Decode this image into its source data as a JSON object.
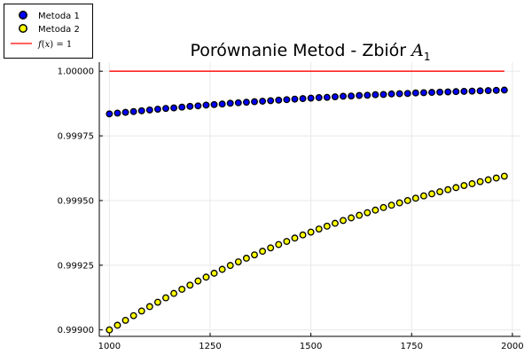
{
  "chart_data": {
    "type": "scatter",
    "title": {
      "text": "Porównanie Metod - Zbiór ",
      "math": "A",
      "sub": "1"
    },
    "xlabel": "",
    "ylabel": "",
    "xlim": [
      975,
      2020
    ],
    "ylim": [
      0.998975,
      1.000035
    ],
    "grid": true,
    "legend_position": "top-left",
    "x_ticks": [
      1000,
      1250,
      1500,
      1750,
      2000
    ],
    "x_tick_labels": [
      "1000",
      "1250",
      "1500",
      "1750",
      "2000"
    ],
    "y_ticks": [
      0.999,
      0.99925,
      0.9995,
      0.99975,
      1.0
    ],
    "y_tick_labels": [
      "0.99900",
      "0.99925",
      "0.99950",
      "0.99975",
      "1.00000"
    ],
    "x": [
      1000,
      1020,
      1040,
      1060,
      1080,
      1100,
      1120,
      1140,
      1160,
      1180,
      1200,
      1220,
      1240,
      1260,
      1280,
      1300,
      1320,
      1340,
      1360,
      1380,
      1400,
      1420,
      1440,
      1460,
      1480,
      1500,
      1520,
      1540,
      1560,
      1580,
      1600,
      1620,
      1640,
      1660,
      1680,
      1700,
      1720,
      1740,
      1760,
      1780,
      1800,
      1820,
      1840,
      1860,
      1880,
      1900,
      1920,
      1940,
      1960,
      1980
    ],
    "series": [
      {
        "name": "Metoda 1",
        "kind": "scatter",
        "color": "#0000ff",
        "values": [
          0.999835,
          0.999838,
          0.999841,
          0.999844,
          0.999847,
          0.99985,
          0.999853,
          0.999856,
          0.999858,
          0.999861,
          0.999864,
          0.999866,
          0.999869,
          0.999871,
          0.999873,
          0.999876,
          0.999878,
          0.99988,
          0.999882,
          0.999884,
          0.999886,
          0.999888,
          0.99989,
          0.999892,
          0.999894,
          0.999896,
          0.999898,
          0.999899,
          0.999901,
          0.999903,
          0.999904,
          0.999906,
          0.999907,
          0.999909,
          0.99991,
          0.999912,
          0.999913,
          0.999914,
          0.999916,
          0.999917,
          0.999918,
          0.999919,
          0.99992,
          0.999921,
          0.999922,
          0.999923,
          0.999924,
          0.999925,
          0.999926,
          0.999927
        ]
      },
      {
        "name": "Metoda 2",
        "kind": "scatter",
        "color": "#ffff00",
        "values": [
          0.999,
          0.999018,
          0.999037,
          0.999055,
          0.999073,
          0.99909,
          0.999107,
          0.999124,
          0.999141,
          0.999157,
          0.999173,
          0.999189,
          0.999204,
          0.999219,
          0.999234,
          0.999249,
          0.999263,
          0.999277,
          0.99929,
          0.999304,
          0.999317,
          0.99933,
          0.999342,
          0.999355,
          0.999367,
          0.999378,
          0.99939,
          0.999401,
          0.999412,
          0.999423,
          0.999433,
          0.999443,
          0.999453,
          0.999463,
          0.999473,
          0.999482,
          0.999491,
          0.9995,
          0.999509,
          0.999518,
          0.999526,
          0.999534,
          0.999542,
          0.99955,
          0.999558,
          0.999565,
          0.999573,
          0.99958,
          0.999587,
          0.999594
        ]
      },
      {
        "name": "f(x) = 1",
        "kind": "line",
        "color": "#ff0000",
        "x": [
          1000,
          1980
        ],
        "values": [
          1.0,
          1.0
        ]
      }
    ],
    "legend_labels": {
      "m1": "Metoda 1",
      "m2": "Metoda 2",
      "fx_math": "f",
      "fx_open": "(",
      "fx_var": "x",
      "fx_close": ") = 1"
    }
  }
}
